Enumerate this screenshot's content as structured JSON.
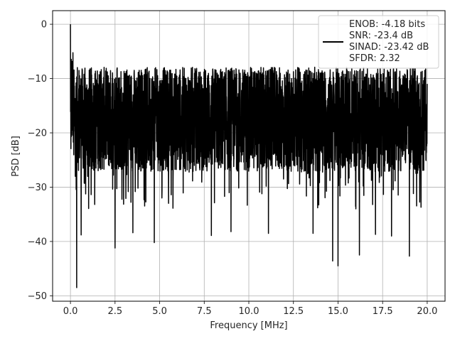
{
  "chart_data": {
    "type": "line",
    "title": "",
    "xlabel": "Frequency [MHz]",
    "ylabel": "PSD [dB]",
    "xlim": [
      -1.0,
      21.0
    ],
    "ylim": [
      -51.0,
      2.5
    ],
    "xticks": [
      0.0,
      2.5,
      5.0,
      7.5,
      10.0,
      12.5,
      15.0,
      17.5,
      20.0
    ],
    "xtick_labels": [
      "0.0",
      "2.5",
      "5.0",
      "7.5",
      "10.0",
      "12.5",
      "15.0",
      "17.5",
      "20.0"
    ],
    "yticks": [
      0,
      -10,
      -20,
      -30,
      -40,
      -50
    ],
    "ytick_labels": [
      "0",
      "−10",
      "−20",
      "−30",
      "−40",
      "−50"
    ],
    "grid": true,
    "legend_position": "top-right",
    "legend": {
      "lines": [
        "ENOB: -4.18 bits",
        "SNR: -23.4 dB",
        "SINAD: -23.42 dB",
        "SFDR: 2.32"
      ]
    },
    "series": [
      {
        "color": "#000000",
        "points_note": "dense noise trace",
        "x_range": [
          0.0,
          20.0
        ],
        "dc_peak": {
          "x": 0.0,
          "y": 0.0
        },
        "typical_band": [
          -25.0,
          -9.0
        ],
        "mean": -17.5,
        "deep_dips": [
          {
            "x": 0.35,
            "y": -48.5
          },
          {
            "x": 0.6,
            "y": -38.8
          },
          {
            "x": 2.5,
            "y": -41.2
          },
          {
            "x": 3.5,
            "y": -38.4
          },
          {
            "x": 4.7,
            "y": -40.2
          },
          {
            "x": 7.9,
            "y": -38.9
          },
          {
            "x": 9.0,
            "y": -38.2
          },
          {
            "x": 11.1,
            "y": -38.5
          },
          {
            "x": 13.6,
            "y": -38.5
          },
          {
            "x": 14.7,
            "y": -43.6
          },
          {
            "x": 15.0,
            "y": -44.5
          },
          {
            "x": 16.2,
            "y": -42.5
          },
          {
            "x": 17.1,
            "y": -38.7
          },
          {
            "x": 18.0,
            "y": -39.0
          },
          {
            "x": 19.0,
            "y": -42.7
          }
        ]
      }
    ]
  }
}
